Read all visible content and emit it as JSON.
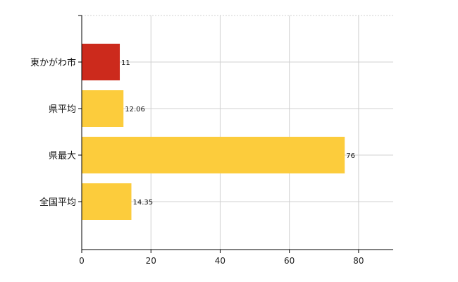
{
  "chart_data": {
    "type": "bar",
    "orientation": "horizontal",
    "categories": [
      "東かがわ市",
      "県平均",
      "県最大",
      "全国平均"
    ],
    "values": [
      11,
      12.06,
      76,
      14.35
    ],
    "value_labels": [
      "11",
      "12.06",
      "76",
      "14.35"
    ],
    "highlight_index": 0,
    "xlim": [
      0,
      90
    ],
    "xticks": [
      0,
      20,
      40,
      60,
      80
    ],
    "grid": true,
    "colors": {
      "highlight": "#cc2a1c",
      "default": "#fccc3c"
    }
  }
}
